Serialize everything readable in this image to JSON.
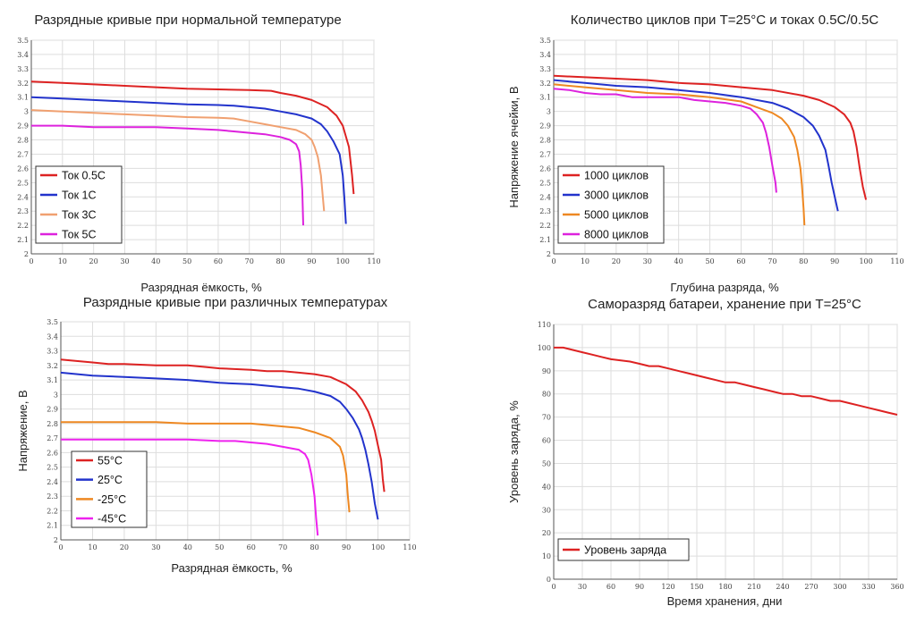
{
  "chart_data": [
    {
      "id": "c1",
      "type": "line",
      "title": "Разрядные кривые при нормальной температуре",
      "xlabel": "Разрядная ёмкость, %",
      "ylabel": "",
      "xlim": [
        0,
        110
      ],
      "ylim": [
        2,
        3.5
      ],
      "xticks": [
        "0",
        "10",
        "20",
        "30",
        "40",
        "50",
        "60",
        "70",
        "80",
        "90",
        "100",
        "110"
      ],
      "yticks": [
        "2",
        "2.1",
        "2.2",
        "2.3",
        "2.4",
        "2.5",
        "2.6",
        "2.7",
        "2.8",
        "2.9",
        "3",
        "3.1",
        "3.2",
        "3.3",
        "3.4",
        "3.5"
      ],
      "legend_position": "bottom-left",
      "series": [
        {
          "name": "Ток 0.5С",
          "color": "#dd2222",
          "x": [
            0,
            10,
            20,
            30,
            40,
            50,
            60,
            70,
            77,
            80,
            85,
            90,
            95,
            98,
            100,
            102,
            103,
            103.5
          ],
          "y": [
            3.21,
            3.2,
            3.19,
            3.18,
            3.17,
            3.16,
            3.155,
            3.15,
            3.145,
            3.13,
            3.11,
            3.08,
            3.03,
            2.97,
            2.9,
            2.75,
            2.55,
            2.42
          ]
        },
        {
          "name": "Ток 1С",
          "color": "#2233cc",
          "x": [
            0,
            10,
            20,
            30,
            40,
            50,
            60,
            65,
            70,
            75,
            80,
            85,
            90,
            93,
            95,
            97,
            99,
            100,
            100.5,
            101
          ],
          "y": [
            3.1,
            3.09,
            3.08,
            3.07,
            3.06,
            3.05,
            3.045,
            3.04,
            3.03,
            3.02,
            3.0,
            2.98,
            2.95,
            2.91,
            2.86,
            2.79,
            2.7,
            2.55,
            2.4,
            2.21
          ]
        },
        {
          "name": "Ток 3С",
          "color": "#f0a070",
          "x": [
            0,
            10,
            20,
            30,
            40,
            50,
            60,
            65,
            70,
            75,
            80,
            85,
            88,
            90,
            91,
            92,
            93,
            93.5,
            94
          ],
          "y": [
            3.01,
            3.0,
            2.99,
            2.98,
            2.97,
            2.96,
            2.955,
            2.95,
            2.93,
            2.91,
            2.89,
            2.87,
            2.84,
            2.8,
            2.75,
            2.68,
            2.55,
            2.42,
            2.3
          ]
        },
        {
          "name": "Ток 5С",
          "color": "#dd22dd",
          "x": [
            0,
            10,
            20,
            30,
            40,
            50,
            60,
            65,
            70,
            75,
            80,
            83,
            85,
            86,
            86.5,
            87,
            87.3
          ],
          "y": [
            2.9,
            2.9,
            2.89,
            2.89,
            2.89,
            2.88,
            2.87,
            2.86,
            2.85,
            2.84,
            2.82,
            2.8,
            2.77,
            2.72,
            2.62,
            2.45,
            2.2
          ]
        }
      ]
    },
    {
      "id": "c2",
      "type": "line",
      "title": "Количество циклов при Т=25°С и токах 0.5С/0.5С",
      "xlabel": "Глубина разряда, %",
      "ylabel": "Напряжение ячейки, В",
      "xlim": [
        0,
        110
      ],
      "ylim": [
        2,
        3.5
      ],
      "xticks": [
        "0",
        "10",
        "20",
        "30",
        "40",
        "50",
        "60",
        "70",
        "80",
        "90",
        "100",
        "110"
      ],
      "yticks": [
        "2",
        "2.1",
        "2.2",
        "2.3",
        "2.4",
        "2.5",
        "2.6",
        "2.7",
        "2.8",
        "2.9",
        "3",
        "3.1",
        "3.2",
        "3.3",
        "3.4",
        "3.5"
      ],
      "legend_position": "bottom-left",
      "series": [
        {
          "name": "1000 циклов",
          "color": "#dd2222",
          "x": [
            0,
            10,
            20,
            30,
            40,
            50,
            60,
            70,
            80,
            85,
            90,
            93,
            95,
            96,
            97,
            98,
            99,
            100
          ],
          "y": [
            3.25,
            3.24,
            3.23,
            3.22,
            3.2,
            3.19,
            3.17,
            3.15,
            3.11,
            3.08,
            3.03,
            2.98,
            2.92,
            2.86,
            2.75,
            2.6,
            2.47,
            2.38
          ]
        },
        {
          "name": "3000 циклов",
          "color": "#2233cc",
          "x": [
            0,
            10,
            20,
            30,
            40,
            50,
            60,
            70,
            75,
            80,
            83,
            85,
            87,
            88,
            89,
            90,
            91
          ],
          "y": [
            3.22,
            3.2,
            3.18,
            3.17,
            3.15,
            3.13,
            3.1,
            3.06,
            3.02,
            2.96,
            2.9,
            2.83,
            2.73,
            2.62,
            2.5,
            2.4,
            2.3
          ]
        },
        {
          "name": "5000 циклов",
          "color": "#ee8822",
          "x": [
            0,
            10,
            20,
            30,
            40,
            50,
            60,
            65,
            70,
            73,
            75,
            77,
            78,
            79,
            79.5,
            80,
            80.3
          ],
          "y": [
            3.19,
            3.17,
            3.15,
            3.13,
            3.12,
            3.1,
            3.07,
            3.03,
            2.99,
            2.95,
            2.9,
            2.82,
            2.73,
            2.6,
            2.48,
            2.32,
            2.2
          ]
        },
        {
          "name": "8000 циклов",
          "color": "#dd22dd",
          "x": [
            0,
            5,
            10,
            15,
            20,
            25,
            30,
            40,
            45,
            50,
            55,
            60,
            63,
            65,
            67,
            68,
            69,
            70,
            71,
            71.3
          ],
          "y": [
            3.16,
            3.15,
            3.13,
            3.12,
            3.12,
            3.1,
            3.1,
            3.1,
            3.08,
            3.07,
            3.06,
            3.04,
            3.02,
            2.98,
            2.92,
            2.85,
            2.75,
            2.62,
            2.5,
            2.43
          ]
        }
      ]
    },
    {
      "id": "c3",
      "type": "line",
      "title": "Разрядные кривые при различных температурах",
      "xlabel": "Разрядная ёмкость, %",
      "ylabel": "Напряжение, В",
      "xlim": [
        0,
        110
      ],
      "ylim": [
        2,
        3.5
      ],
      "xticks": [
        "0",
        "10",
        "20",
        "30",
        "40",
        "50",
        "60",
        "70",
        "80",
        "90",
        "100",
        "110"
      ],
      "yticks": [
        "2",
        "2.1",
        "2.2",
        "2.3",
        "2.4",
        "2.5",
        "2.6",
        "2.7",
        "2.8",
        "2.9",
        "3",
        "3.1",
        "3.2",
        "3.3",
        "3.4",
        "3.5"
      ],
      "legend_position": "bottom-left",
      "series": [
        {
          "name": "55°С",
          "color": "#dd2222",
          "x": [
            0,
            5,
            10,
            15,
            20,
            30,
            40,
            45,
            50,
            60,
            65,
            70,
            75,
            80,
            85,
            90,
            93,
            95,
            97,
            98,
            99,
            100,
            101,
            101.5,
            102
          ],
          "y": [
            3.24,
            3.23,
            3.22,
            3.21,
            3.21,
            3.2,
            3.2,
            3.19,
            3.18,
            3.17,
            3.16,
            3.16,
            3.15,
            3.14,
            3.12,
            3.07,
            3.02,
            2.96,
            2.88,
            2.82,
            2.75,
            2.65,
            2.55,
            2.42,
            2.33
          ]
        },
        {
          "name": "25°С",
          "color": "#2233cc",
          "x": [
            0,
            10,
            20,
            30,
            40,
            50,
            60,
            70,
            75,
            80,
            85,
            88,
            90,
            92,
            94,
            95,
            96,
            97,
            98,
            99,
            100
          ],
          "y": [
            3.15,
            3.13,
            3.12,
            3.11,
            3.1,
            3.08,
            3.07,
            3.05,
            3.04,
            3.02,
            2.99,
            2.95,
            2.9,
            2.84,
            2.76,
            2.7,
            2.62,
            2.52,
            2.4,
            2.25,
            2.14
          ]
        },
        {
          "name": "-25°С",
          "color": "#ee8822",
          "x": [
            0,
            10,
            20,
            30,
            40,
            50,
            60,
            65,
            70,
            75,
            80,
            85,
            88,
            89,
            90,
            90.5,
            91
          ],
          "y": [
            2.81,
            2.81,
            2.81,
            2.81,
            2.8,
            2.8,
            2.8,
            2.79,
            2.78,
            2.77,
            2.74,
            2.7,
            2.64,
            2.58,
            2.45,
            2.3,
            2.19
          ]
        },
        {
          "name": "-45°С",
          "color": "#ee22ee",
          "x": [
            0,
            10,
            20,
            30,
            40,
            50,
            55,
            60,
            65,
            70,
            75,
            77,
            78,
            79,
            80,
            80.5,
            81
          ],
          "y": [
            2.69,
            2.69,
            2.69,
            2.69,
            2.69,
            2.68,
            2.68,
            2.67,
            2.66,
            2.64,
            2.62,
            2.59,
            2.55,
            2.45,
            2.3,
            2.15,
            2.03
          ]
        }
      ]
    },
    {
      "id": "c4",
      "type": "line",
      "title": "Саморазряд батареи, хранение при Т=25°С",
      "xlabel": "Время хранения, дни",
      "ylabel": "Уровень заряда, %",
      "xlim": [
        0,
        360
      ],
      "ylim": [
        0,
        110
      ],
      "xticks": [
        "0",
        "30",
        "60",
        "90",
        "120",
        "150",
        "180",
        "210",
        "240",
        "270",
        "300",
        "330",
        "360"
      ],
      "yticks": [
        "0",
        "10",
        "20",
        "30",
        "40",
        "50",
        "60",
        "70",
        "80",
        "90",
        "100",
        "110"
      ],
      "legend_position": "bottom-left",
      "series": [
        {
          "name": "Уровень заряда",
          "color": "#dd2222",
          "x": [
            0,
            10,
            20,
            30,
            40,
            50,
            60,
            80,
            90,
            100,
            110,
            120,
            130,
            140,
            150,
            160,
            170,
            180,
            190,
            200,
            210,
            220,
            230,
            240,
            250,
            260,
            270,
            280,
            290,
            300,
            310,
            320,
            330,
            340,
            350,
            360
          ],
          "y": [
            100,
            100,
            99,
            98,
            97,
            96,
            95,
            94,
            93,
            92,
            92,
            91,
            90,
            89,
            88,
            87,
            86,
            85,
            85,
            84,
            83,
            82,
            81,
            80,
            80,
            79,
            79,
            78,
            77,
            77,
            76,
            75,
            74,
            73,
            72,
            71
          ]
        }
      ]
    }
  ]
}
